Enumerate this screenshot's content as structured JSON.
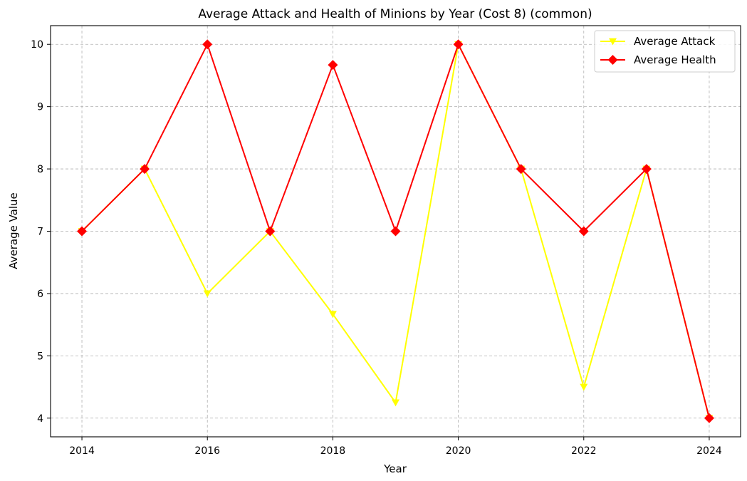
{
  "chart_data": {
    "type": "line",
    "title": "Average Attack and Health of Minions by Year (Cost 8) (common)",
    "xlabel": "Year",
    "ylabel": "Average Value",
    "x": [
      2014,
      2015,
      2016,
      2017,
      2018,
      2019,
      2020,
      2021,
      2022,
      2023,
      2024
    ],
    "xlim": [
      2013.5,
      2024.5
    ],
    "ylim": [
      3.7,
      10.3
    ],
    "xticks": [
      "2014",
      "2016",
      "2018",
      "2020",
      "2022",
      "2024"
    ],
    "yticks": [
      "4",
      "5",
      "6",
      "7",
      "8",
      "9",
      "10"
    ],
    "grid": true,
    "legend_position": "top-right",
    "series": [
      {
        "name": "Average Attack",
        "color": "#ffff00",
        "marker": "triangle-down",
        "values": [
          7,
          8,
          6,
          7,
          5.67,
          4.25,
          10,
          8,
          4.5,
          8,
          4
        ]
      },
      {
        "name": "Average Health",
        "color": "#ff0000",
        "marker": "diamond",
        "values": [
          7,
          8,
          10,
          7,
          9.67,
          7,
          10,
          8,
          7,
          8,
          4
        ]
      }
    ]
  }
}
